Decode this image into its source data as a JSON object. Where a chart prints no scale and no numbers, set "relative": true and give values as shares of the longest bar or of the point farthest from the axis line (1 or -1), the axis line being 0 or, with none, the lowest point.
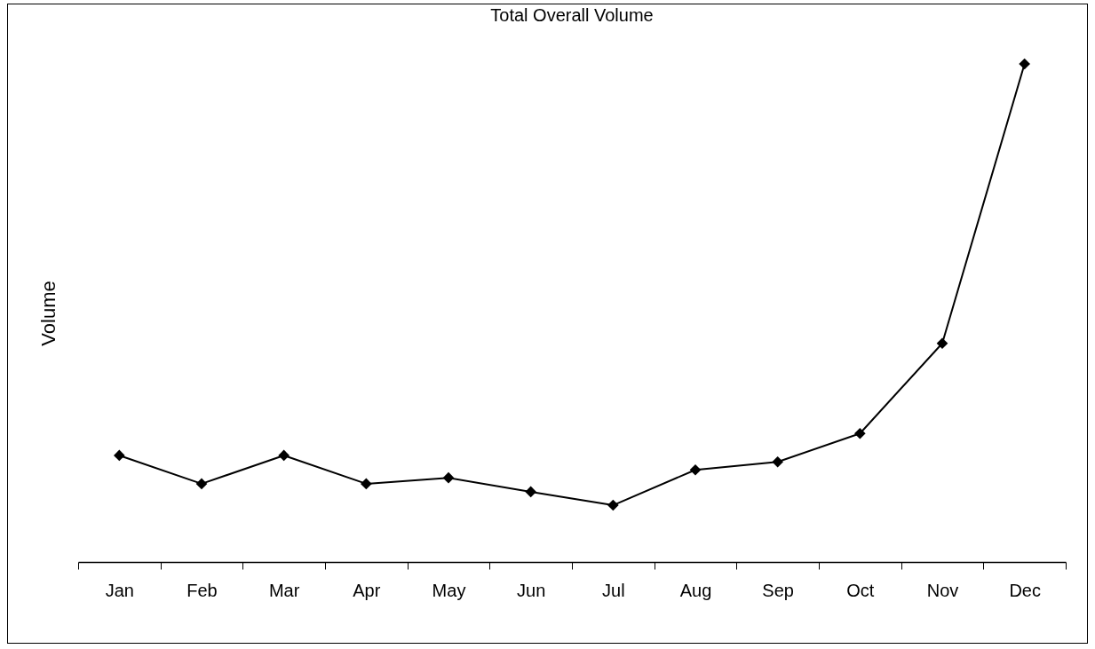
{
  "chart_data": {
    "type": "line",
    "title": "Total Overall Volume",
    "ylabel": "Volume",
    "relative": true,
    "categories": [
      "Jan",
      "Feb",
      "Mar",
      "Apr",
      "May",
      "Jun",
      "Jul",
      "Aug",
      "Sep",
      "Oct",
      "Nov",
      "Dec"
    ],
    "values": [
      0.214,
      0.157,
      0.214,
      0.157,
      0.169,
      0.141,
      0.114,
      0.185,
      0.201,
      0.258,
      0.439,
      1
    ],
    "color": "#000000",
    "marker": "diamond",
    "line_style": "solid"
  }
}
